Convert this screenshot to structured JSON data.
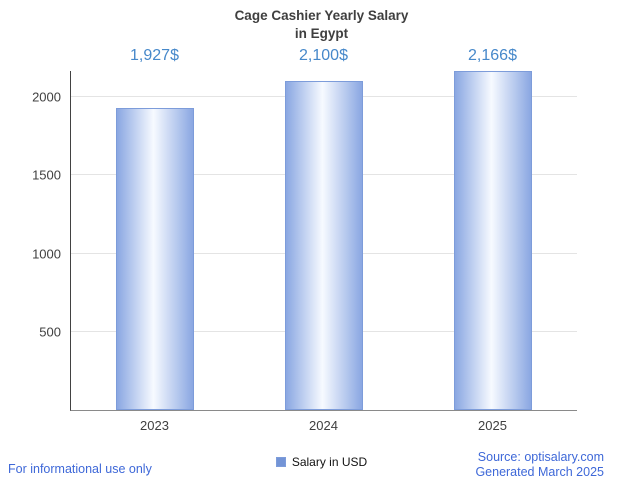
{
  "chart_data": {
    "type": "bar",
    "title_lines": [
      "Cage Cashier Yearly Salary",
      "in Egypt"
    ],
    "categories": [
      "2023",
      "2024",
      "2025"
    ],
    "values": [
      1927,
      2100,
      2166
    ],
    "value_labels": [
      "1,927$",
      "2,100$",
      "2,166$"
    ],
    "series": [
      {
        "name": "Salary in USD",
        "values": [
          1927,
          2100,
          2166
        ]
      }
    ],
    "yticks": [
      500,
      1000,
      1500,
      2000
    ],
    "ylim": [
      0,
      2166
    ],
    "xlabel": "",
    "ylabel": "",
    "grid": true,
    "legend": "Salary in USD",
    "legend_position": "bottom-center",
    "colors": {
      "bar-edge": "#8aa7e2",
      "bar-center": "#f7faff",
      "bar-border": "#7d9cda",
      "value-label": "#4688ca",
      "legend-swatch": "#7394d6",
      "footer-link": "#3e68d8",
      "grid": "#e4e4e4",
      "axis-y": "#424242",
      "axis-x": "#8a8a8a",
      "text": "#404040"
    }
  },
  "footer": {
    "disclaimer": "For informational use only",
    "source": "Source: optisalary.com",
    "generated": "Generated March 2025"
  }
}
